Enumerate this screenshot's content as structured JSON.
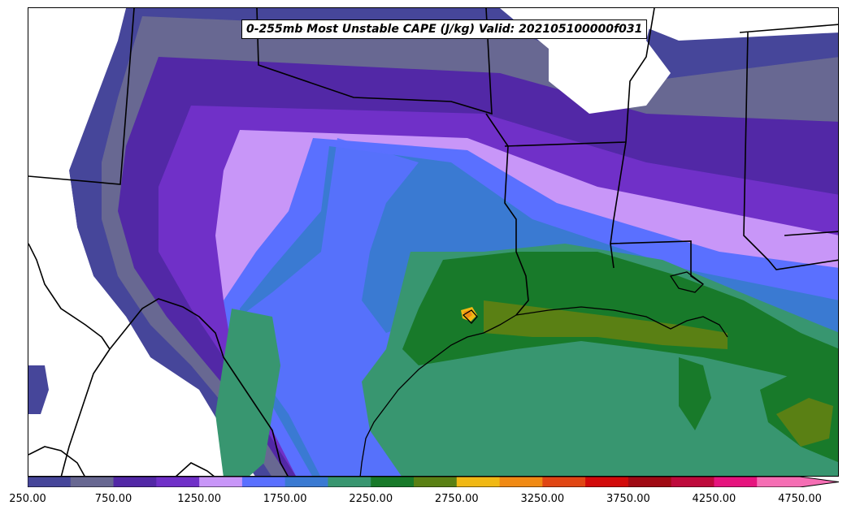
{
  "title": "0-255mb Most Unstable CAPE (J/kg) Valid: 202105100000f031",
  "colorbar": {
    "colors": [
      "#46469a",
      "#686892",
      "#5228a6",
      "#7030c8",
      "#c896f8",
      "#5a70ff",
      "#3a7ad2",
      "#389670",
      "#187a2a",
      "#5a8014",
      "#f0b814",
      "#f08a14",
      "#e04614",
      "#d20a0a",
      "#a00a14",
      "#be0a3c",
      "#e6147e",
      "#f56eb4"
    ],
    "tick_labels": [
      "250.00",
      "750.00",
      "1250.00",
      "1750.00",
      "2250.00",
      "2750.00",
      "3250.00",
      "3750.00",
      "4250.00",
      "4750.00"
    ],
    "extend": "max"
  }
}
